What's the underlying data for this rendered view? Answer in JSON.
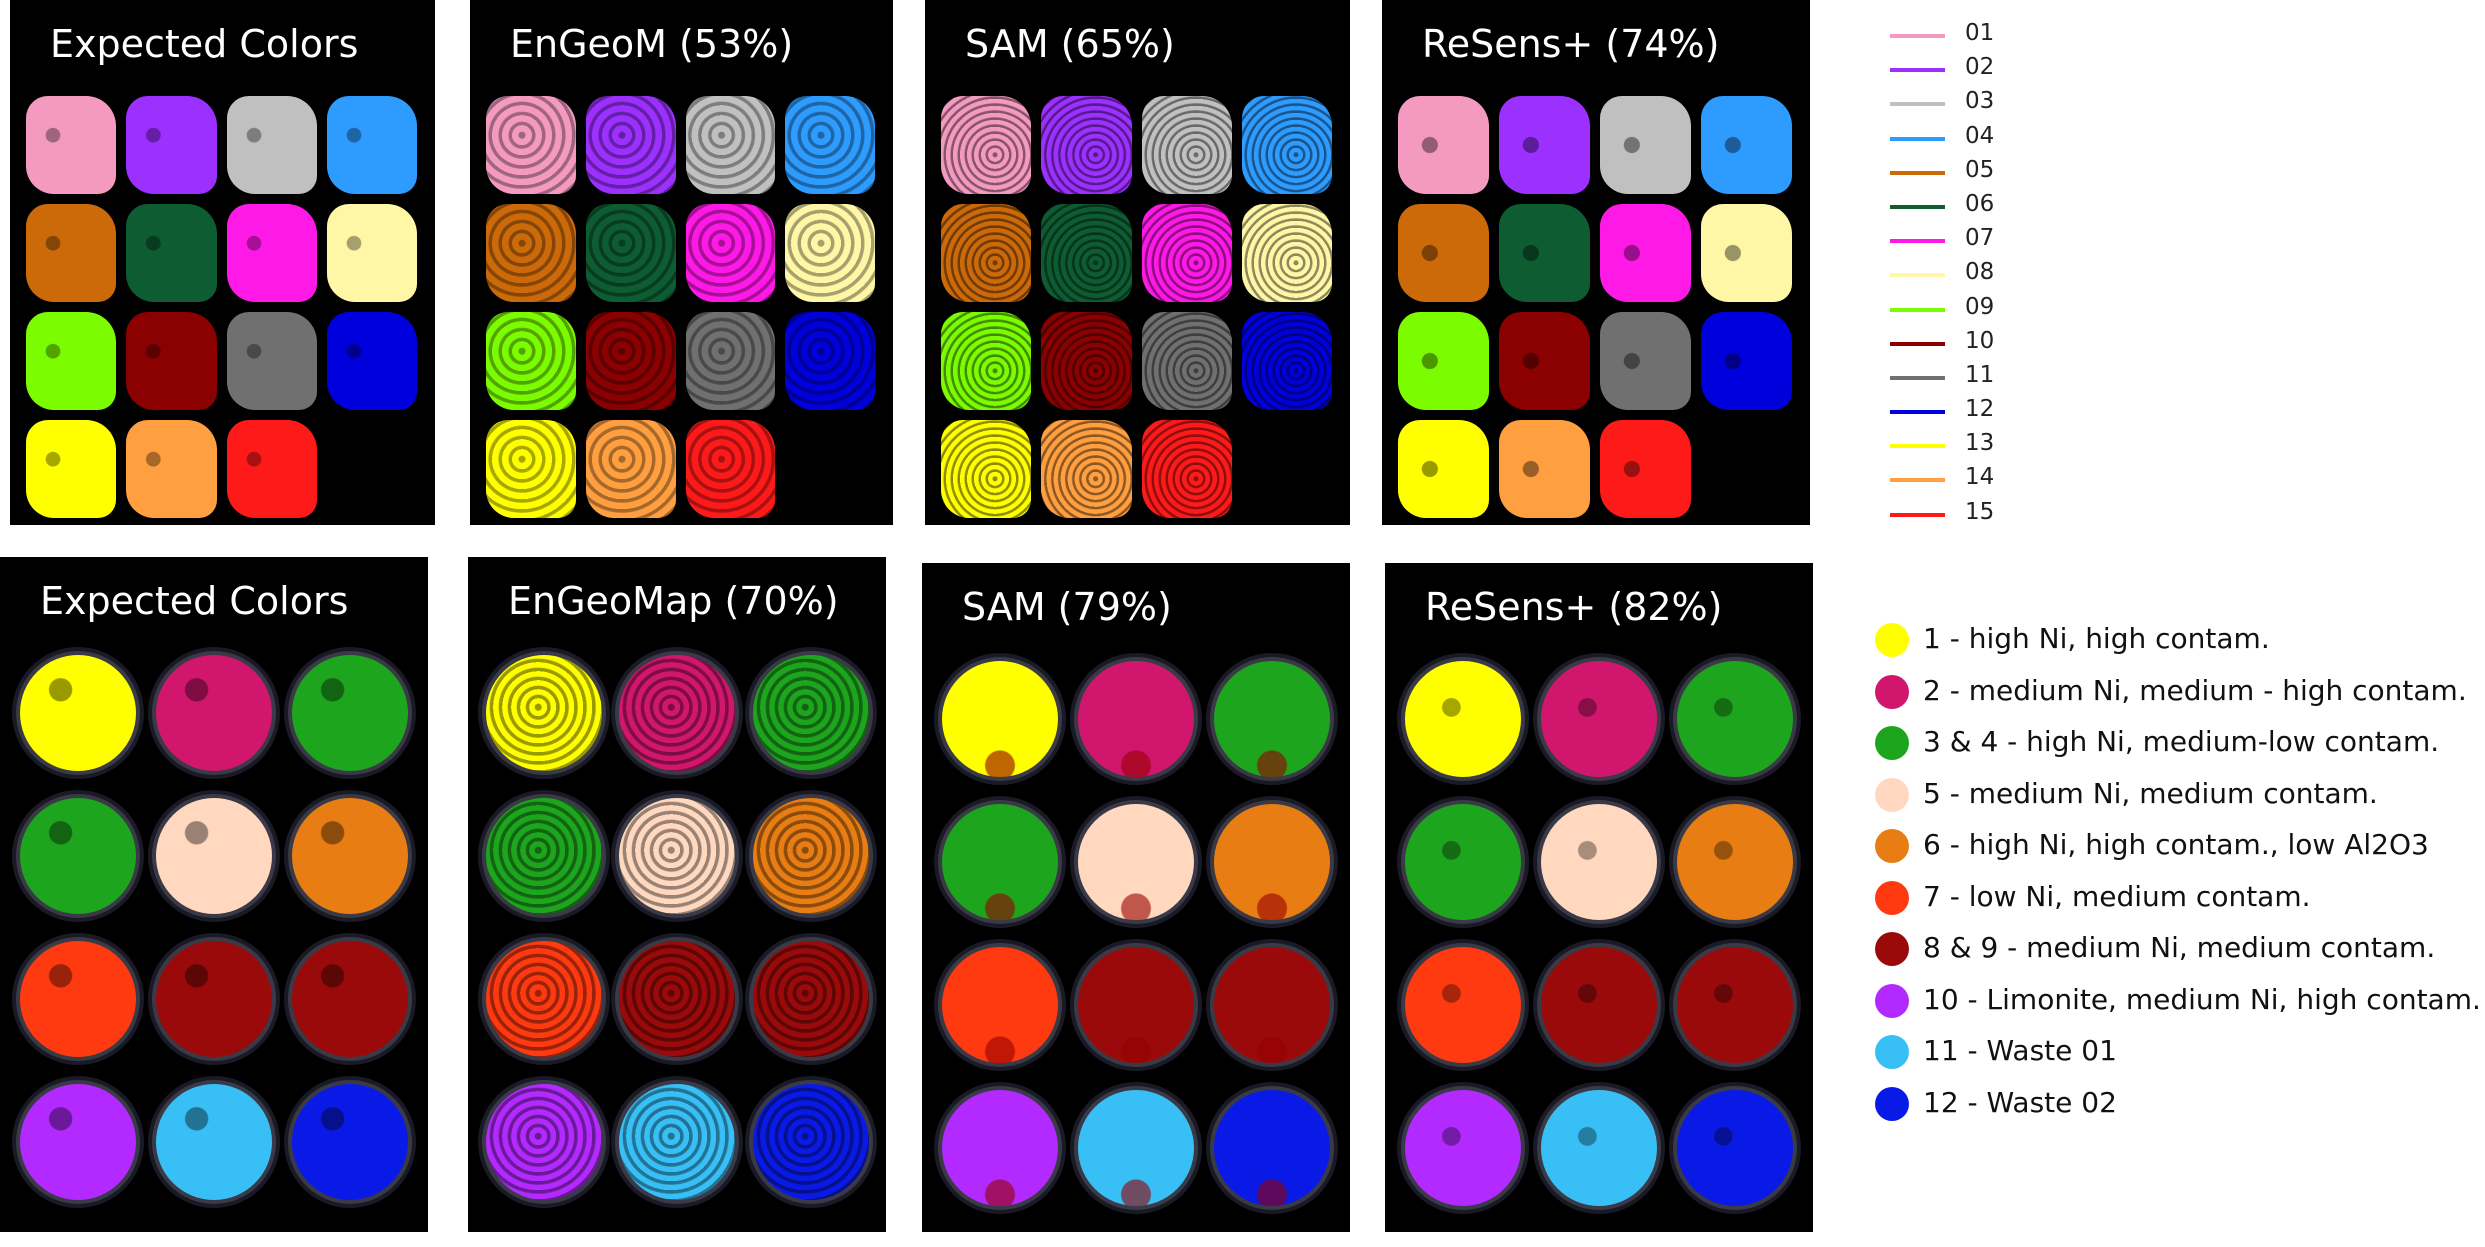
{
  "colors_top": [
    "#f49ac1",
    "#9b30ff",
    "#c0c0c0",
    "#2e9bff",
    "#cc6a0a",
    "#0d5c32",
    "#ff19e6",
    "#fff7a6",
    "#7cfc00",
    "#8b0000",
    "#707070",
    "#0000dd",
    "#ffff00",
    "#ff9f40",
    "#ff1a1a"
  ],
  "colors_bottom": [
    "#ffff00",
    "#d1166d",
    "#1ea51e",
    "#ffd8bf",
    "#e87d14",
    "#ff3a10",
    "#9a0a0a",
    "#b22aff",
    "#38bff5",
    "#0a1ae6"
  ],
  "top_panels": [
    {
      "title": "Expected Colors"
    },
    {
      "title": "EnGeoM (53%)"
    },
    {
      "title": "SAM (65%)"
    },
    {
      "title": "ReSens+ (74%)"
    }
  ],
  "bottom_panels": [
    {
      "title": "Expected Colors"
    },
    {
      "title": "EnGeoMap (70%)"
    },
    {
      "title": "SAM (79%)"
    },
    {
      "title": "ReSens+ (82%)"
    }
  ],
  "legend_top": [
    {
      "label": "01",
      "color": "#f49ac1"
    },
    {
      "label": "02",
      "color": "#9b30ff"
    },
    {
      "label": "03",
      "color": "#c0c0c0"
    },
    {
      "label": "04",
      "color": "#2e9bff"
    },
    {
      "label": "05",
      "color": "#cc6a0a"
    },
    {
      "label": "06",
      "color": "#0d5c32"
    },
    {
      "label": "07",
      "color": "#ff19e6"
    },
    {
      "label": "08",
      "color": "#fff7a6"
    },
    {
      "label": "09",
      "color": "#7cfc00"
    },
    {
      "label": "10",
      "color": "#8b0000"
    },
    {
      "label": "11",
      "color": "#707070"
    },
    {
      "label": "12",
      "color": "#0000dd"
    },
    {
      "label": "13",
      "color": "#ffff00"
    },
    {
      "label": "14",
      "color": "#ff9f40"
    },
    {
      "label": "15",
      "color": "#ff1a1a"
    }
  ],
  "legend_bottom": [
    {
      "label": "1 - high Ni, high contam.",
      "color": "#ffff00"
    },
    {
      "label": "2 - medium Ni, medium - high contam.",
      "color": "#d1166d"
    },
    {
      "label": "3 & 4 - high Ni, medium-low contam.",
      "color": "#1ea51e"
    },
    {
      "label": "5 - medium Ni, medium contam.",
      "color": "#ffd8bf"
    },
    {
      "label": "6 - high Ni, high contam., low Al2O3",
      "color": "#e87d14"
    },
    {
      "label": "7 - low Ni, medium contam.",
      "color": "#ff3a10"
    },
    {
      "label": "8 & 9 - medium Ni, medium contam.",
      "color": "#9a0a0a"
    },
    {
      "label": "10 - Limonite, medium Ni, high contam.",
      "color": "#b22aff"
    },
    {
      "label": "11 - Waste 01",
      "color": "#38bff5"
    },
    {
      "label": "12 - Waste 02",
      "color": "#0a1ae6"
    }
  ]
}
